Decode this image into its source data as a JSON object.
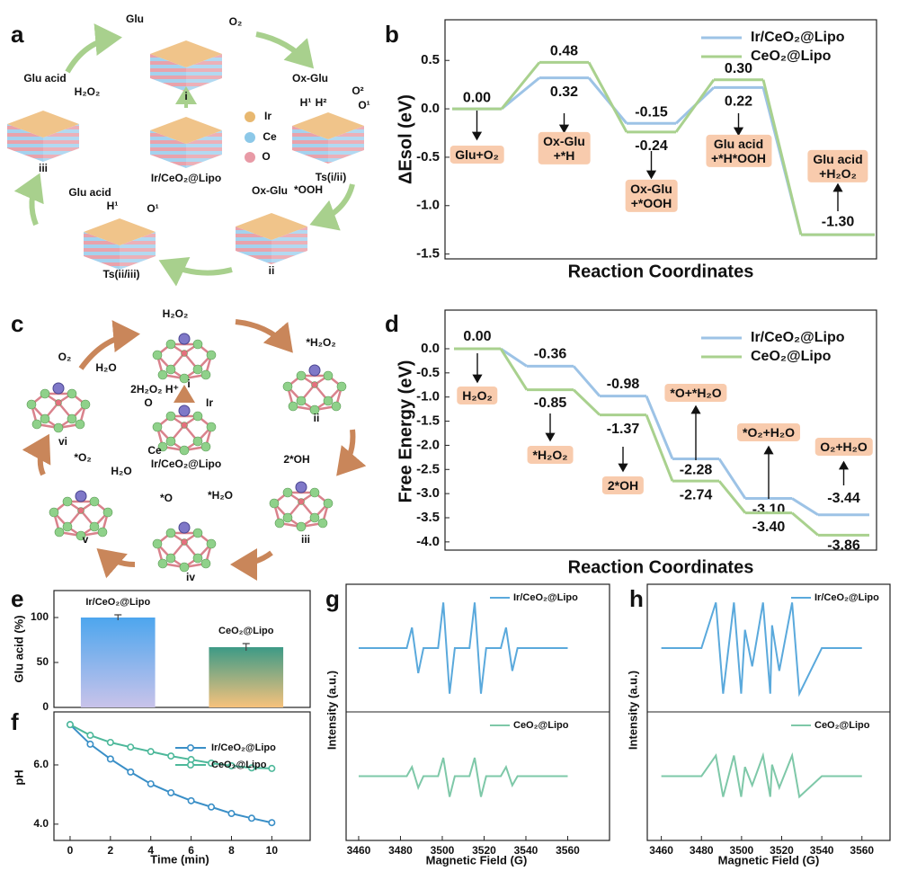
{
  "diagrams": {
    "a": {
      "panel": "a",
      "labels": [
        "Glu",
        "O₂",
        "i",
        "Ir/CeO₂@Lipo",
        "Ir",
        "Ce",
        "O",
        "Ox-Glu",
        "H¹",
        "H²",
        "O²",
        "O¹",
        "Ts(i/ii)",
        "Ox-Glu",
        "*OOH",
        "ii",
        "Glu acid",
        "H¹",
        "O¹",
        "Ts(ii/iii)",
        "Glu acid",
        "H₂O₂",
        "iii"
      ]
    },
    "c": {
      "panel": "c",
      "labels": [
        "H₂O₂",
        "i",
        "*H₂O₂",
        "ii",
        "2*OH",
        "iii",
        "*O",
        "*H₂O",
        "iv",
        "*O₂",
        "H₂O",
        "v",
        "O₂",
        "H₂O",
        "vi",
        "2H₂O₂ H⁺",
        "O",
        "Ir",
        "Ce",
        "Ir/CeO₂@Lipo"
      ]
    }
  },
  "chart_data": [
    {
      "panel": "b",
      "type": "step",
      "ylabel": "ΔEsol (eV)",
      "xlabel": "Reaction Coordinates",
      "categories": [
        "Glu+O₂",
        "Ox-Glu\n+*H",
        "Ox-Glu\n+*OOH",
        "Glu acid\n+*H*OOH",
        "Glu acid\n+H₂O₂"
      ],
      "series": [
        {
          "name": "Ir/CeO₂@Lipo",
          "color": "#9dc3e6",
          "values": [
            0,
            0.32,
            -0.15,
            0.22,
            -1.3
          ],
          "value_labels": [
            "0.00",
            "0.32",
            "-0.15",
            "0.22",
            "-1.30"
          ]
        },
        {
          "name": "CeO₂@Lipo",
          "color": "#a9d18e",
          "values": [
            0,
            0.48,
            -0.24,
            0.3,
            -1.3
          ],
          "value_labels": [
            null,
            "0.48",
            "-0.24",
            "0.30",
            null
          ]
        }
      ],
      "ylim": [
        -1.55,
        0.92
      ],
      "yticks": [
        -1.5,
        {
          "value": -1,
          "label": "-1.0"
        },
        -0.5,
        {
          "value": 0,
          "label": "0.0"
        },
        0.5
      ],
      "legend": "upper right"
    },
    {
      "panel": "d",
      "type": "step",
      "ylabel": "Free Energy (eV)",
      "xlabel": "Reaction Coordinates",
      "categories": [
        "H₂O₂",
        "*H₂O₂",
        "2*OH",
        "*O+*H₂O",
        "*O₂+H₂O",
        "O₂+H₂O"
      ],
      "series": [
        {
          "name": "Ir/CeO₂@Lipo",
          "color": "#9dc3e6",
          "values": [
            0,
            -0.36,
            -0.98,
            -2.28,
            -3.1,
            -3.44
          ],
          "value_labels": [
            "0.00",
            "-0.36",
            "-0.98",
            "-2.28",
            "-3.10",
            "-3.44"
          ]
        },
        {
          "name": "CeO₂@Lipo",
          "color": "#a9d18e",
          "values": [
            0,
            -0.85,
            -1.37,
            -2.74,
            -3.4,
            -3.86
          ],
          "value_labels": [
            null,
            "-0.85",
            "-1.37",
            "-2.74",
            "-3.40",
            "-3.86"
          ]
        }
      ],
      "ylim": [
        -4.17,
        0.8
      ],
      "yticks": [
        {
          "value": -4,
          "label": "-4.0"
        },
        -3.5,
        {
          "value": -3,
          "label": "-3.0"
        },
        -2.5,
        {
          "value": -2,
          "label": "-2.0"
        },
        -1.5,
        {
          "value": -1,
          "label": "-1.0"
        },
        -0.5,
        {
          "value": 0,
          "label": "0.0"
        }
      ],
      "legend": "upper right"
    },
    {
      "panel": "e",
      "type": "bar",
      "ylabel": "Glu acid (%)",
      "categories": [
        "Ir/CeO₂@Lipo",
        "CeO₂@Lipo"
      ],
      "values": [
        100,
        67
      ],
      "errors": [
        3,
        4
      ],
      "colors": [
        [
          "#4da6ee",
          "#c9c3ea"
        ],
        [
          "#3d9a86",
          "#f7c27c"
        ]
      ],
      "ylim": [
        0,
        130
      ],
      "yticks": [
        0,
        50,
        100
      ]
    },
    {
      "panel": "f",
      "type": "line",
      "xlabel": "Time (min)",
      "ylabel": "pH",
      "x": [
        0,
        1,
        2,
        3,
        4,
        5,
        6,
        7,
        8,
        9,
        10
      ],
      "series": [
        {
          "name": "Ir/CeO₂@Lipo",
          "color": "#3a8fc7",
          "values": [
            7.36,
            6.7,
            6.2,
            5.76,
            5.36,
            5.06,
            4.79,
            4.58,
            4.36,
            4.2,
            4.05
          ]
        },
        {
          "name": "CeO₂@Lipo",
          "color": "#4db89a",
          "values": [
            7.36,
            7.0,
            6.76,
            6.6,
            6.45,
            6.3,
            6.18,
            6.06,
            5.97,
            5.9,
            5.88
          ]
        }
      ],
      "xlim": [
        -0.8,
        11.9
      ],
      "xticks": [
        0,
        2,
        4,
        6,
        8,
        10
      ],
      "ylim": [
        3.45,
        7.79
      ],
      "yticks": [
        {
          "value": 4,
          "label": "4.0"
        },
        {
          "value": 6,
          "label": "6.0"
        }
      ],
      "markers": true,
      "legend": "upper right"
    },
    {
      "panel": "g",
      "type": "line",
      "stacked": true,
      "xlabel": "Magnetic Field (G)",
      "ylabel": "Intensity (a.u.)",
      "x": [
        3460,
        3483,
        3485.5,
        3488.5,
        3491,
        3498,
        3500.5,
        3503.5,
        3506,
        3513,
        3515.5,
        3518.5,
        3521,
        3528,
        3530.5,
        3533.5,
        3536,
        3560
      ],
      "series": [
        {
          "name": "Ir/CeO₂@Lipo",
          "color": "#5aa9dc",
          "values": [
            0,
            0,
            0.45,
            -0.55,
            0,
            0,
            1,
            -1,
            0,
            0,
            1,
            -1,
            0,
            0,
            0.45,
            -0.5,
            0,
            0
          ]
        },
        {
          "name": "CeO₂@Lipo",
          "color": "#7ec8a8",
          "values": [
            0,
            0,
            0.2,
            -0.25,
            0,
            0,
            0.4,
            -0.45,
            0,
            0,
            0.4,
            -0.45,
            0,
            0,
            0.2,
            -0.2,
            0,
            0
          ]
        }
      ],
      "xlim": [
        3454,
        3580
      ],
      "xticks": [
        3460,
        3480,
        3500,
        3520,
        3540,
        3560
      ],
      "ylim": [
        -1.4,
        1.4
      ],
      "legend": "upper right"
    },
    {
      "panel": "h",
      "type": "line",
      "stacked": true,
      "xlabel": "Magnetic Field (G)",
      "ylabel": "Intensity (a.u.)",
      "x": [
        3460,
        3480,
        3487.2,
        3490.8,
        3496.2,
        3499.8,
        3501.7,
        3505.3,
        3510.7,
        3514.3,
        3515.2,
        3518.8,
        3525.2,
        3528.8,
        3540,
        3560
      ],
      "series": [
        {
          "name": "Ir/CeO₂@Lipo",
          "color": "#5aa9dc",
          "values": [
            0,
            0,
            1,
            -1,
            1,
            -1,
            0.4,
            -0.4,
            1,
            -1,
            0.5,
            -0.5,
            1,
            -1,
            0,
            0
          ]
        },
        {
          "name": "CeO₂@Lipo",
          "color": "#7ec8a8",
          "values": [
            0,
            0,
            0.45,
            -0.45,
            0.45,
            -0.45,
            0.2,
            -0.2,
            0.45,
            -0.45,
            0.25,
            -0.25,
            0.45,
            -0.45,
            0,
            0
          ]
        }
      ],
      "xlim": [
        3453,
        3574
      ],
      "xticks": [
        3460,
        3480,
        3500,
        3520,
        3540,
        3560
      ],
      "ylim": [
        -1.4,
        1.4
      ],
      "legend": "upper right"
    }
  ]
}
